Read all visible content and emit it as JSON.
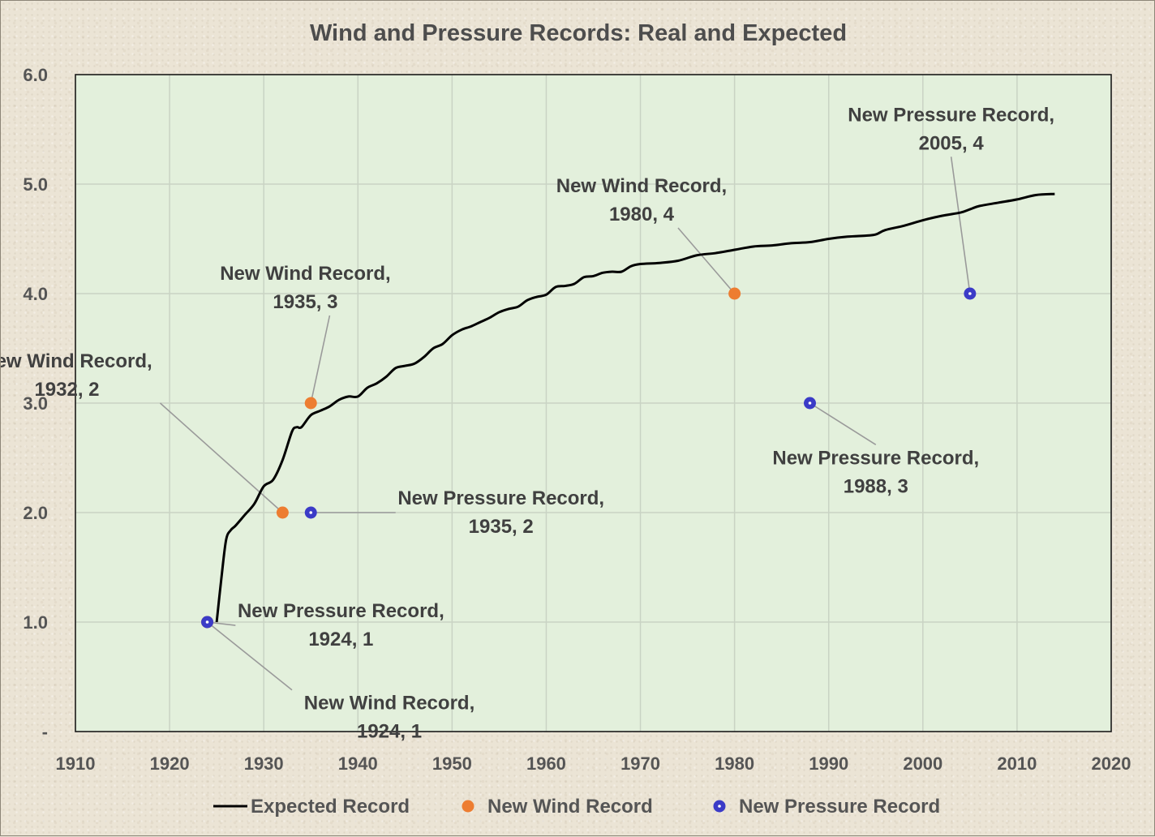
{
  "chart_data": {
    "type": "scatter",
    "title": "Wind and Pressure Records: Real and Expected",
    "xlabel": "",
    "ylabel": "",
    "xlim": [
      1910,
      2020
    ],
    "ylim": [
      0,
      6
    ],
    "x_ticks": [
      1910,
      1920,
      1930,
      1940,
      1950,
      1960,
      1970,
      1980,
      1990,
      2000,
      2010,
      2020
    ],
    "y_ticks": [
      {
        "value": 0,
        "label": "-"
      },
      {
        "value": 1,
        "label": "1.0"
      },
      {
        "value": 2,
        "label": "2.0"
      },
      {
        "value": 3,
        "label": "3.0"
      },
      {
        "value": 4,
        "label": "4.0"
      },
      {
        "value": 5,
        "label": "5.0"
      },
      {
        "value": 6,
        "label": "6.0"
      }
    ],
    "grid": true,
    "legend_position": "bottom",
    "series": [
      {
        "name": "Expected Record",
        "kind": "line",
        "color": "#000000",
        "x": [
          1925,
          1925.5,
          1926,
          1926.5,
          1927,
          1928,
          1929,
          1930,
          1931,
          1932,
          1933,
          1933.5,
          1934,
          1935,
          1936,
          1937,
          1938,
          1939,
          1940,
          1941,
          1942,
          1943,
          1944,
          1945,
          1946,
          1947,
          1948,
          1949,
          1950,
          1951,
          1952,
          1953,
          1954,
          1955,
          1956,
          1957,
          1958,
          1959,
          1960,
          1961,
          1962,
          1963,
          1964,
          1965,
          1966,
          1967,
          1968,
          1969,
          1970,
          1972,
          1974,
          1976,
          1978,
          1980,
          1982,
          1984,
          1986,
          1988,
          1990,
          1992,
          1994,
          1995,
          1996,
          1998,
          2000,
          2002,
          2004,
          2005,
          2006,
          2008,
          2010,
          2012,
          2014
        ],
        "values": [
          1.0,
          1.4,
          1.75,
          1.84,
          1.88,
          1.98,
          2.08,
          2.24,
          2.3,
          2.48,
          2.74,
          2.78,
          2.78,
          2.89,
          2.93,
          2.97,
          3.03,
          3.06,
          3.06,
          3.14,
          3.18,
          3.24,
          3.32,
          3.34,
          3.36,
          3.42,
          3.5,
          3.54,
          3.62,
          3.67,
          3.7,
          3.74,
          3.78,
          3.83,
          3.86,
          3.88,
          3.94,
          3.97,
          3.99,
          4.06,
          4.07,
          4.09,
          4.15,
          4.16,
          4.19,
          4.2,
          4.2,
          4.25,
          4.27,
          4.28,
          4.3,
          4.35,
          4.37,
          4.4,
          4.43,
          4.44,
          4.46,
          4.47,
          4.5,
          4.52,
          4.53,
          4.54,
          4.58,
          4.62,
          4.67,
          4.71,
          4.74,
          4.77,
          4.8,
          4.83,
          4.86,
          4.9,
          4.91
        ]
      },
      {
        "name": "New Wind Record",
        "kind": "scatter",
        "color": "#ed7d31",
        "x": [
          1924,
          1932,
          1935,
          1980
        ],
        "values": [
          1,
          2,
          3,
          4
        ]
      },
      {
        "name": "New Pressure Record",
        "kind": "scatter",
        "color": "#3b3bc7",
        "x": [
          1924,
          1935,
          1988,
          2005
        ],
        "values": [
          1,
          2,
          3,
          4
        ]
      }
    ],
    "annotations": [
      {
        "lines": [
          "New Pressure Record,",
          "1924, 1"
        ],
        "point": [
          1924,
          1
        ],
        "label_at": [
          1927,
          0.97
        ]
      },
      {
        "lines": [
          "New Wind Record,",
          "1924, 1"
        ],
        "point": [
          1924,
          1
        ],
        "label_at": [
          1933,
          0.38
        ]
      },
      {
        "lines": [
          "New Wind Record,",
          "1932, 2"
        ],
        "point": [
          1932,
          2
        ],
        "label_at": [
          1919,
          3.0
        ]
      },
      {
        "lines": [
          "New Wind Record,",
          "1935, 3"
        ],
        "point": [
          1935,
          3
        ],
        "label_at": [
          1937,
          3.8
        ]
      },
      {
        "lines": [
          "New Pressure Record,",
          "1935, 2"
        ],
        "point": [
          1935,
          2
        ],
        "label_at": [
          1944,
          2.0
        ]
      },
      {
        "lines": [
          "New Wind Record,",
          "1980, 4"
        ],
        "point": [
          1980,
          4
        ],
        "label_at": [
          1974,
          4.6
        ]
      },
      {
        "lines": [
          "New Pressure Record,",
          "1988, 3"
        ],
        "point": [
          1988,
          3
        ],
        "label_at": [
          1995,
          2.62
        ]
      },
      {
        "lines": [
          "New Pressure Record,",
          "2005, 4"
        ],
        "point": [
          2005,
          4
        ],
        "label_at": [
          2003,
          5.25
        ]
      }
    ]
  }
}
